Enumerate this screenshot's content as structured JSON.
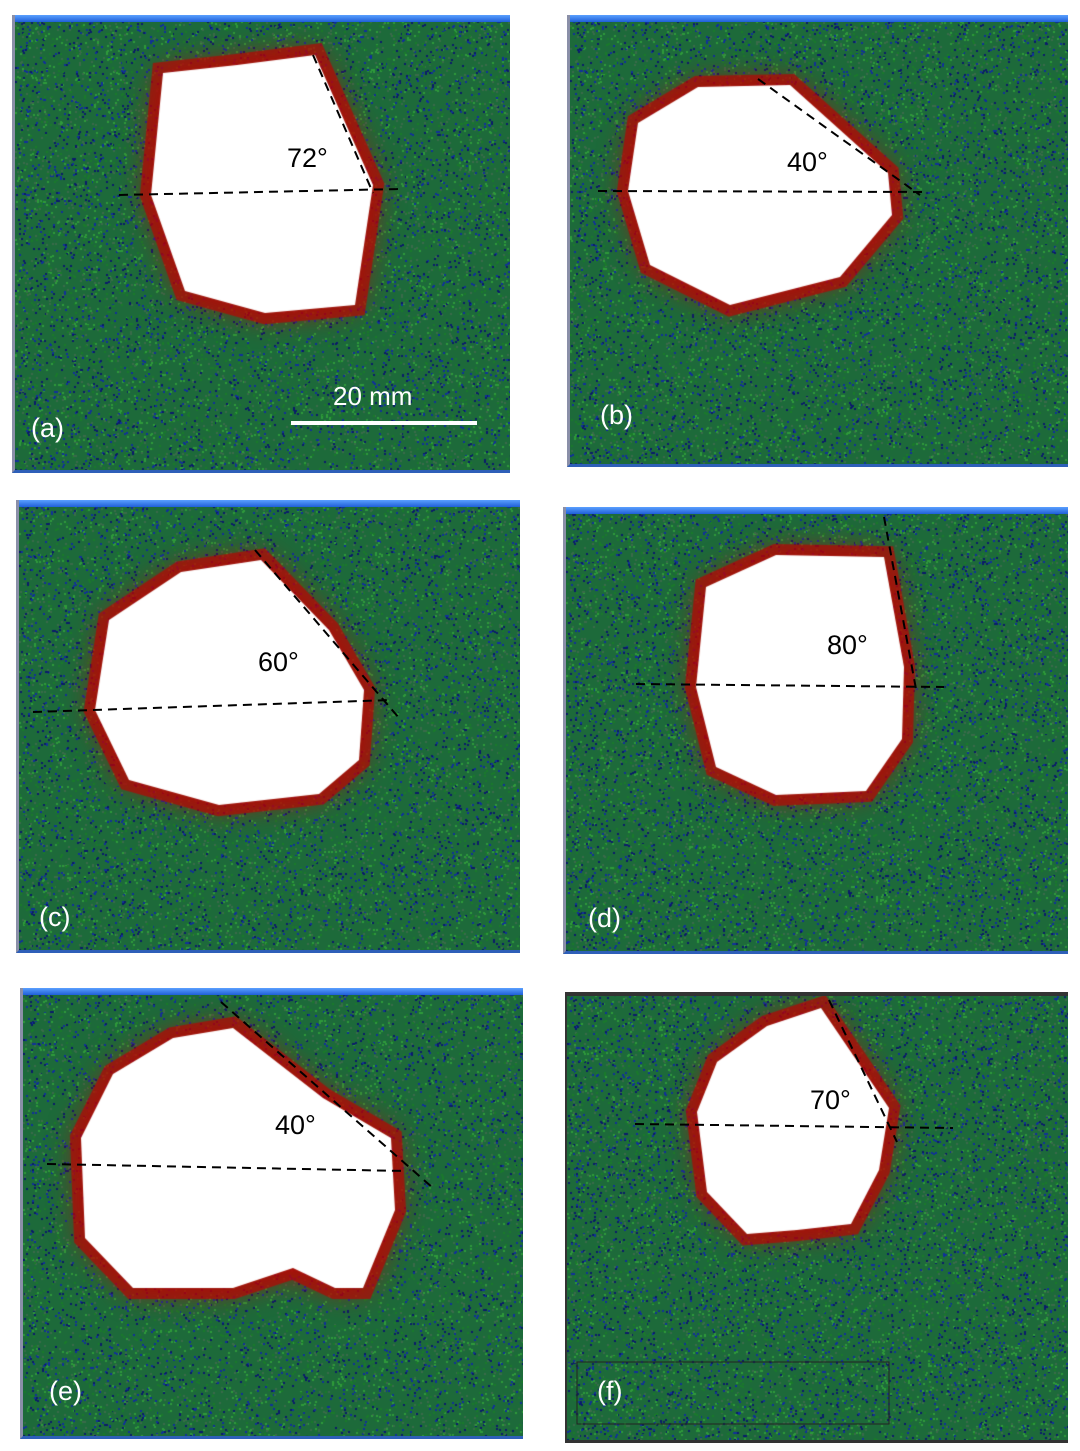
{
  "panels": [
    {
      "label": "(a)",
      "angle": "72°"
    },
    {
      "label": "(b)",
      "angle": "40°"
    },
    {
      "label": "(c)",
      "angle": "60°"
    },
    {
      "label": "(d)",
      "angle": "80°"
    },
    {
      "label": "(e)",
      "angle": "40°"
    },
    {
      "label": "(f)",
      "angle": "70°"
    }
  ],
  "scale_bar": {
    "label": "20 mm"
  },
  "colors": {
    "background_noise": [
      "#1a7a2a",
      "#2f9a3a",
      "#10309a",
      "#0a1a6a",
      "#3a6a4a"
    ],
    "halo": "#c80000",
    "spot": "#ffffff",
    "frame_top": "#1f5fd8"
  }
}
